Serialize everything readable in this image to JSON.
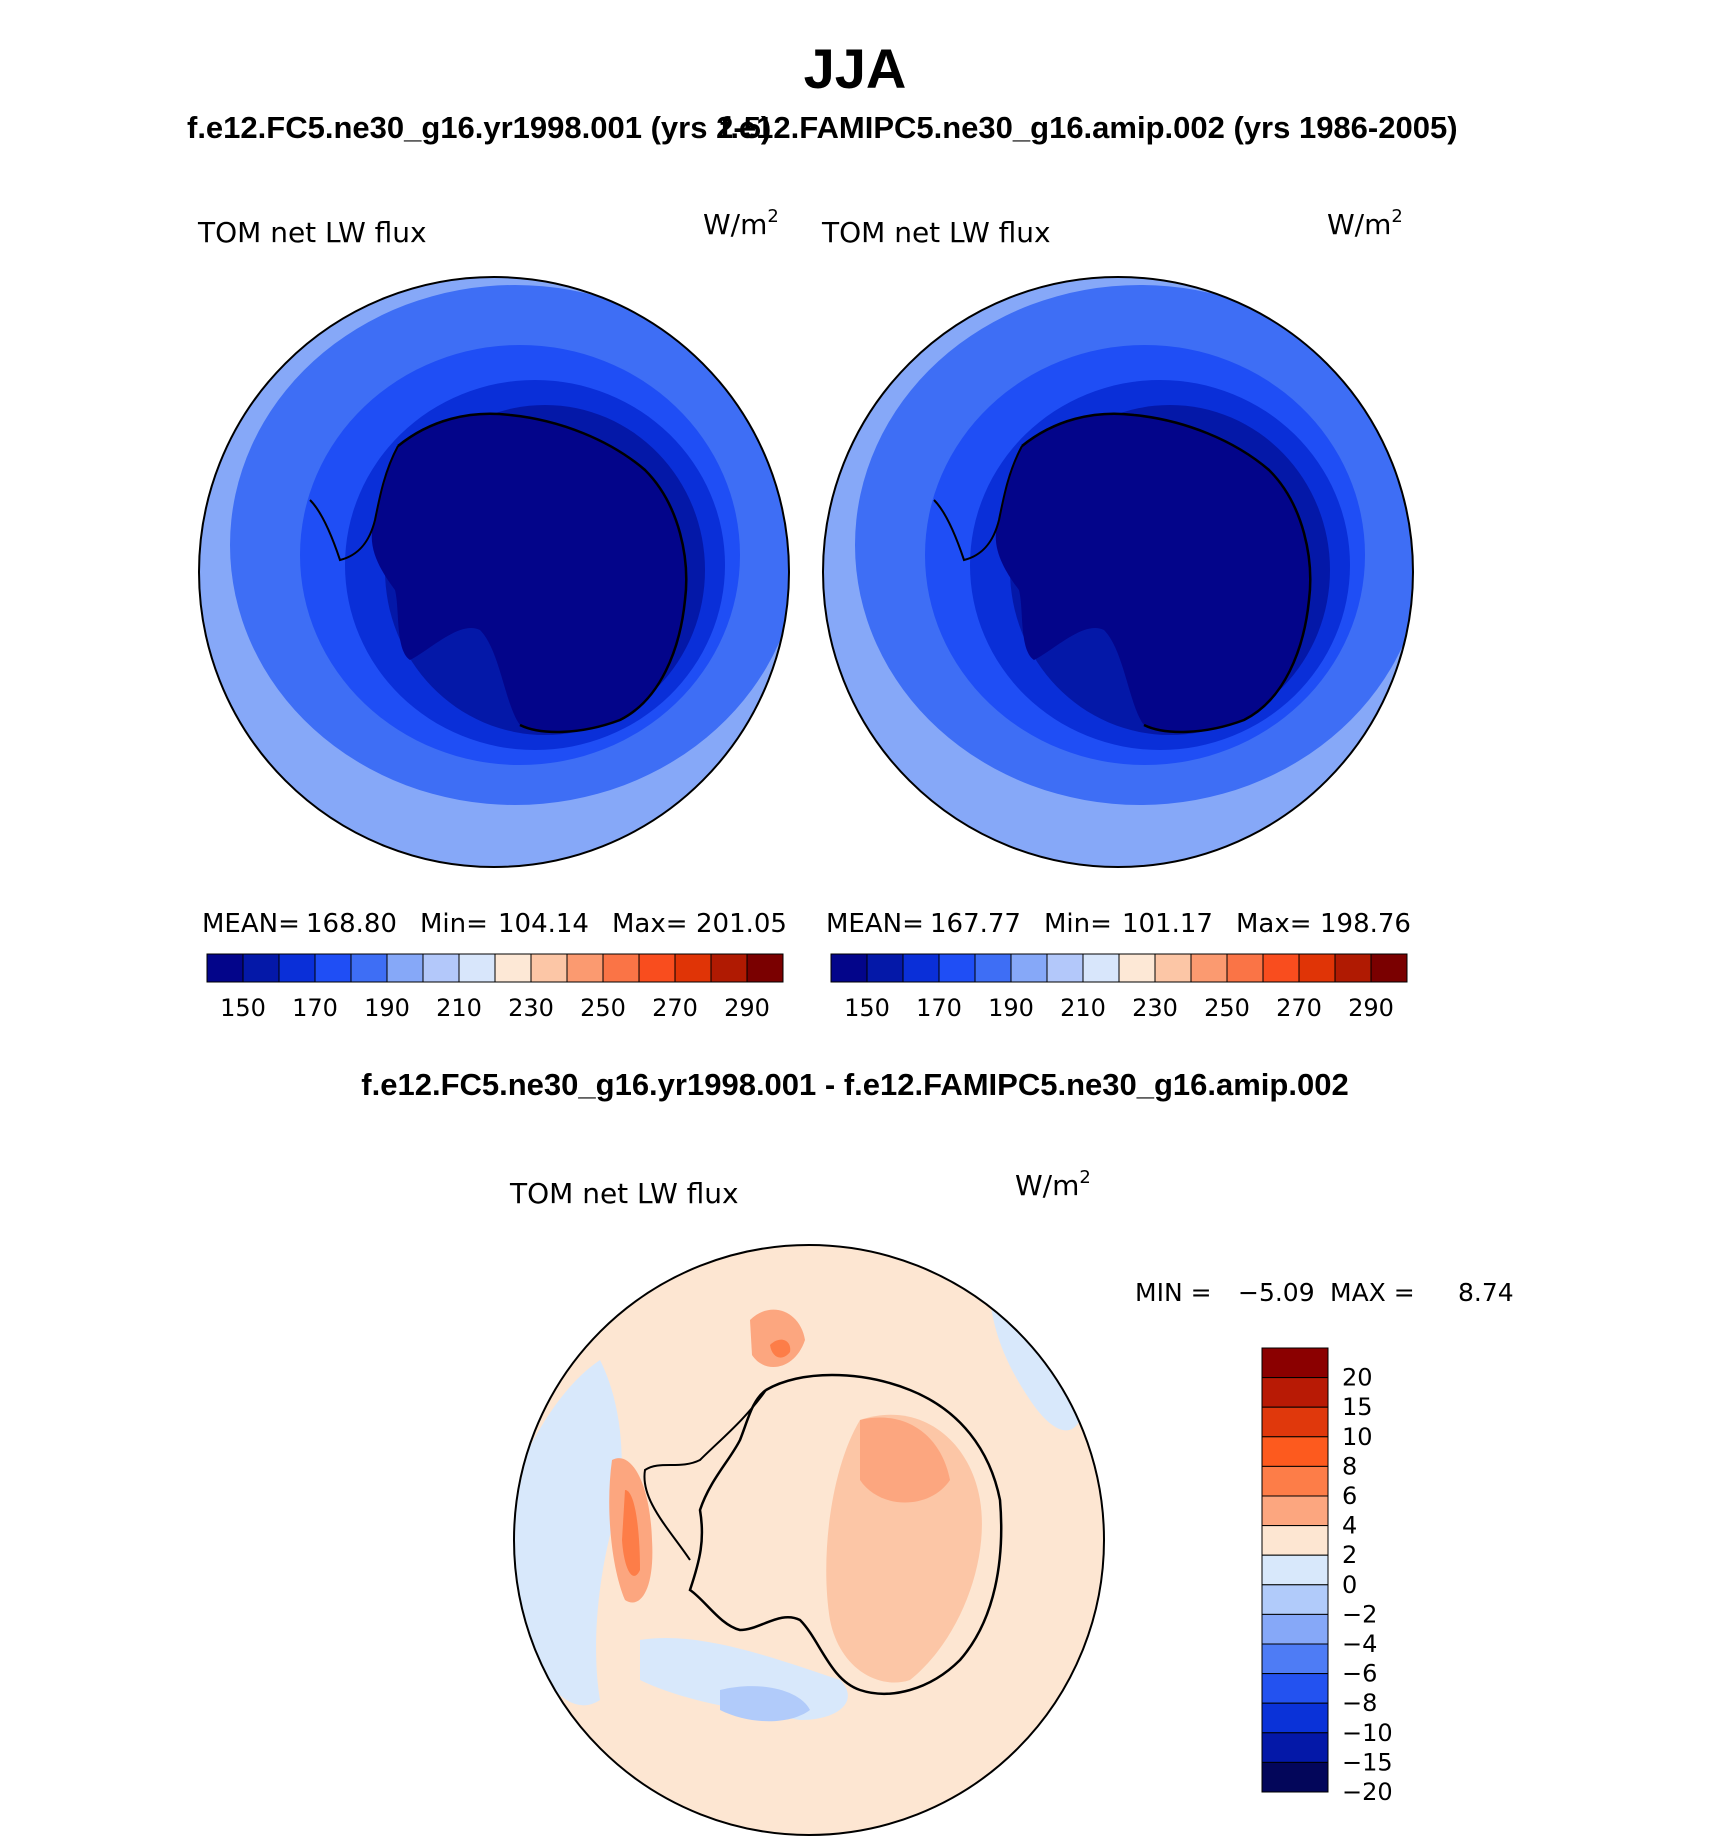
{
  "main_title": "JJA",
  "panels": [
    {
      "case_title": "f.e12.FC5.ne30_g16.yr1998.001 (yrs 2-5)",
      "variable": "TOM net LW flux",
      "units": "W/m",
      "units_exp": "2",
      "stats": {
        "mean_label": "MEAN=",
        "mean": "168.80",
        "min_label": "Min=",
        "min": "104.14",
        "max_label": "Max=",
        "max": "201.05"
      }
    },
    {
      "case_title": "f.e12.FAMIPC5.ne30_g16.amip.002 (yrs 1986-2005)",
      "variable": "TOM net LW flux",
      "units": "W/m",
      "units_exp": "2",
      "stats": {
        "mean_label": "MEAN=",
        "mean": "167.77",
        "min_label": "Min=",
        "min": "101.17",
        "max_label": "Max=",
        "max": "198.76"
      }
    }
  ],
  "colorbar_abs": {
    "colors": [
      "#03058a",
      "#0418a8",
      "#0a2fd8",
      "#1f4ef5",
      "#3e6ef5",
      "#86a8f8",
      "#b3c8fa",
      "#d8e6fb",
      "#fde8d6",
      "#fcc6a6",
      "#fb9a70",
      "#fa7446",
      "#f94d1e",
      "#e03406",
      "#b01a02",
      "#7a0000"
    ],
    "tick_labels": [
      "150",
      "170",
      "190",
      "210",
      "230",
      "250",
      "270",
      "290"
    ]
  },
  "diff": {
    "title": "f.e12.FC5.ne30_g16.yr1998.001 - f.e12.FAMIPC5.ne30_g16.amip.002",
    "variable": "TOM net LW flux",
    "units": "W/m",
    "units_exp": "2",
    "min_label": "MIN =",
    "min": "−5.09",
    "max_label": "MAX =",
    "max": "8.74",
    "colorbar": {
      "colors": [
        "#8b0000",
        "#b81a05",
        "#e0380c",
        "#fd5a1e",
        "#fd7d48",
        "#fca67f",
        "#fde6d2",
        "#d8e8fb",
        "#b1cbfa",
        "#86a8f8",
        "#4e7cf5",
        "#2352f0",
        "#0a32d8",
        "#0418a8",
        "#03065a"
      ],
      "tick_labels": [
        "20",
        "15",
        "10",
        "8",
        "6",
        "4",
        "2",
        "0",
        "−2",
        "−4",
        "−6",
        "−8",
        "−10",
        "−15",
        "−20"
      ]
    }
  }
}
